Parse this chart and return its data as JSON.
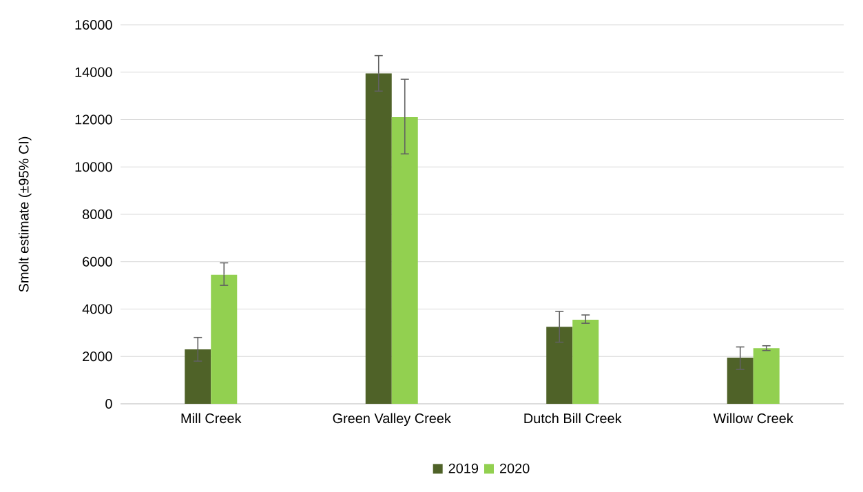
{
  "chart_data": {
    "type": "bar",
    "ylabel": "Smolt estimate (±95% CI)",
    "categories": [
      "Mill Creek",
      "Green Valley Creek",
      "Dutch Bill Creek",
      "Willow Creek"
    ],
    "series": [
      {
        "name": "2019",
        "color": "#4f6228",
        "values": [
          2300,
          13950,
          3250,
          1950
        ],
        "errors": [
          [
            1800,
            2800
          ],
          [
            13200,
            14700
          ],
          [
            2600,
            3900
          ],
          [
            1450,
            2400
          ]
        ]
      },
      {
        "name": "2020",
        "color": "#92d050",
        "values": [
          5450,
          12100,
          3550,
          2350
        ],
        "errors": [
          [
            5000,
            5950
          ],
          [
            10550,
            13700
          ],
          [
            3400,
            3750
          ],
          [
            2250,
            2450
          ]
        ]
      }
    ],
    "ylim": [
      0,
      16000
    ],
    "yticks": [
      0,
      2000,
      4000,
      6000,
      8000,
      10000,
      12000,
      14000,
      16000
    ],
    "grid": "y",
    "legend": "bottom"
  }
}
